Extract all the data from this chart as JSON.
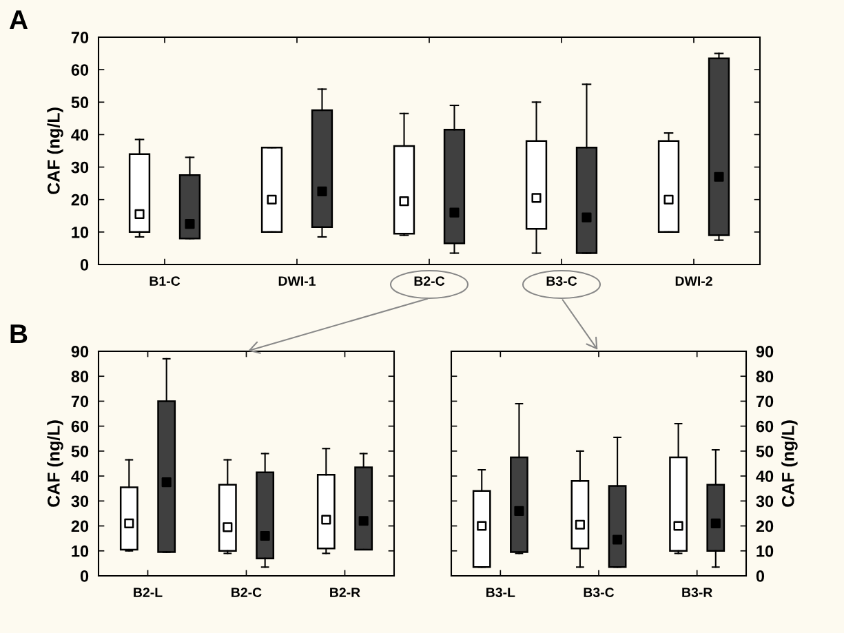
{
  "chart_data": [
    {
      "type": "box",
      "categories": [
        "B1-C",
        "DWI-1",
        "B2-C",
        "B3-C",
        "DWI-2"
      ],
      "ylabel": "CAF (ng/L)",
      "ylim": [
        0,
        70
      ],
      "yticks": [
        0,
        10,
        20,
        30,
        40,
        50,
        60,
        70
      ],
      "marker": "square",
      "grid": false,
      "annotations": [
        "A"
      ],
      "series": [
        {
          "color": "#ffffff",
          "boxes": [
            {
              "low": 8.5,
              "q1": 10,
              "median": 15.5,
              "q3": 34,
              "high": 38.5
            },
            {
              "low": 10,
              "q1": 10,
              "median": 20,
              "q3": 36,
              "high": 36
            },
            {
              "low": 9,
              "q1": 9.5,
              "median": 19.5,
              "q3": 36.5,
              "high": 46.5
            },
            {
              "low": 3.5,
              "q1": 11,
              "median": 20.5,
              "q3": 38,
              "high": 50
            },
            {
              "low": 10,
              "q1": 10,
              "median": 20,
              "q3": 38,
              "high": 40.5
            }
          ]
        },
        {
          "color": "#404040",
          "boxes": [
            {
              "low": 8,
              "q1": 8,
              "median": 12.5,
              "q3": 27.5,
              "high": 33
            },
            {
              "low": 8.5,
              "q1": 11.5,
              "median": 22.5,
              "q3": 47.5,
              "high": 54
            },
            {
              "low": 3.5,
              "q1": 6.5,
              "median": 16,
              "q3": 41.5,
              "high": 49
            },
            {
              "low": 3.5,
              "q1": 3.5,
              "median": 14.5,
              "q3": 36,
              "high": 55.5
            },
            {
              "low": 7.5,
              "q1": 9,
              "median": 27,
              "q3": 63.5,
              "high": 65
            }
          ]
        }
      ]
    },
    {
      "type": "box",
      "categories": [
        "B2-L",
        "B2-C",
        "B2-R"
      ],
      "ylabel": "CAF (ng/L)",
      "ylim": [
        0,
        90
      ],
      "yticks": [
        0,
        10,
        20,
        30,
        40,
        50,
        60,
        70,
        80,
        90
      ],
      "marker": "square",
      "grid": false,
      "annotations": [
        "B"
      ],
      "series": [
        {
          "color": "#ffffff",
          "boxes": [
            {
              "low": 10,
              "q1": 10.5,
              "median": 21,
              "q3": 35.5,
              "high": 46.5
            },
            {
              "low": 9,
              "q1": 10,
              "median": 19.5,
              "q3": 36.5,
              "high": 46.5
            },
            {
              "low": 9,
              "q1": 11,
              "median": 22.5,
              "q3": 40.5,
              "high": 51
            }
          ]
        },
        {
          "color": "#404040",
          "boxes": [
            {
              "low": 9.5,
              "q1": 9.5,
              "median": 37.5,
              "q3": 70,
              "high": 87
            },
            {
              "low": 3.5,
              "q1": 7,
              "median": 16,
              "q3": 41.5,
              "high": 49
            },
            {
              "low": 10.5,
              "q1": 10.5,
              "median": 22,
              "q3": 43.5,
              "high": 49
            }
          ]
        }
      ]
    },
    {
      "type": "box",
      "categories": [
        "B3-L",
        "B3-C",
        "B3-R"
      ],
      "y2label": "CAF (ng/L)",
      "y2lim": [
        0,
        90
      ],
      "y2ticks": [
        0,
        10,
        20,
        30,
        40,
        50,
        60,
        70,
        80,
        90
      ],
      "marker": "square",
      "grid": false,
      "series": [
        {
          "color": "#ffffff",
          "axis": "y2",
          "boxes": [
            {
              "low": 3.5,
              "q1": 3.5,
              "median": 20,
              "q3": 34,
              "high": 42.5
            },
            {
              "low": 3.5,
              "q1": 11,
              "median": 20.5,
              "q3": 38,
              "high": 50
            },
            {
              "low": 9,
              "q1": 10,
              "median": 20,
              "q3": 47.5,
              "high": 61
            }
          ]
        },
        {
          "color": "#404040",
          "axis": "y2",
          "boxes": [
            {
              "low": 9,
              "q1": 9.5,
              "median": 26,
              "q3": 47.5,
              "high": 69
            },
            {
              "low": 3.5,
              "q1": 3.5,
              "median": 14.5,
              "q3": 36,
              "high": 55.5
            },
            {
              "low": 3.5,
              "q1": 10,
              "median": 21,
              "q3": 36.5,
              "high": 50.5
            }
          ]
        }
      ]
    }
  ]
}
